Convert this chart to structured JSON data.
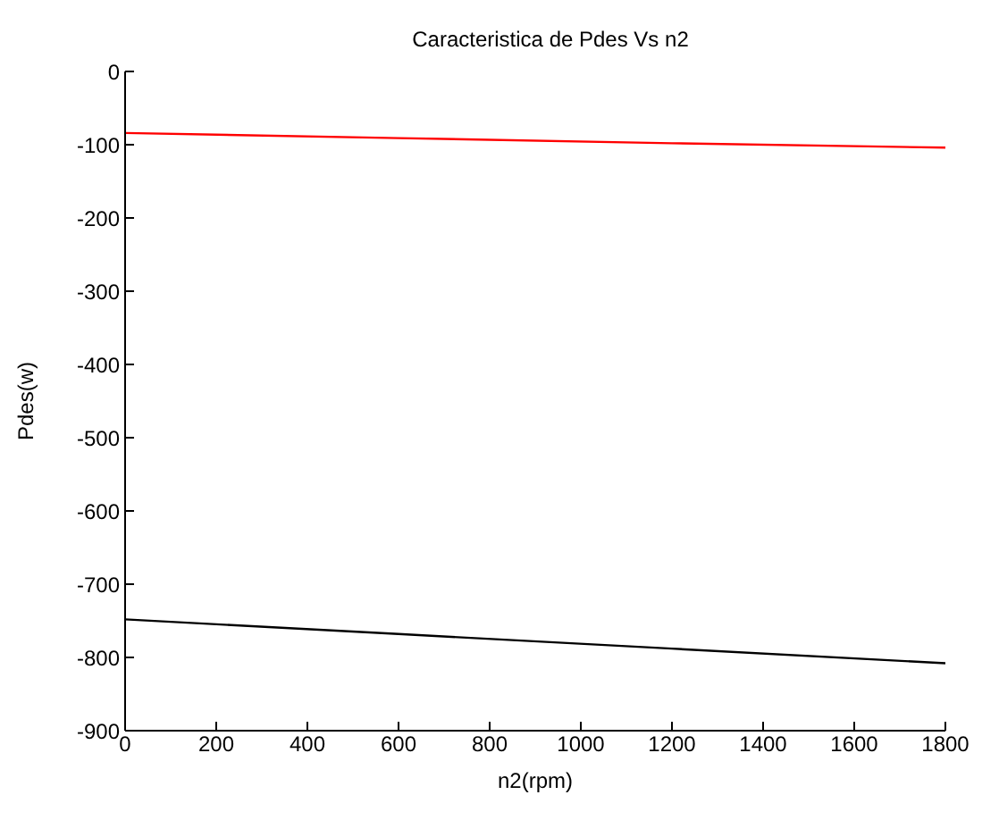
{
  "chart_data": {
    "type": "line",
    "title": "Caracteristica de Pdes Vs n2",
    "xlabel": "n2(rpm)",
    "ylabel": "Pdes(w)",
    "x": [
      0,
      600,
      1200,
      1800
    ],
    "series": [
      {
        "color": "#ff0000",
        "values": [
          -84,
          -91,
          -98,
          -104
        ]
      },
      {
        "color": "#000000",
        "values": [
          -748,
          -768,
          -788,
          -808
        ]
      }
    ],
    "xlim": [
      0,
      1800
    ],
    "xticks": [
      0,
      200,
      400,
      600,
      800,
      1000,
      1200,
      1400,
      1600,
      1800
    ],
    "ylim": [
      -900,
      0
    ],
    "yticks": [
      -900,
      -800,
      -700,
      -600,
      -500,
      -400,
      -300,
      -200,
      -100,
      0
    ],
    "grid": false,
    "legend": false,
    "marker": "none",
    "line_style": "solid"
  }
}
